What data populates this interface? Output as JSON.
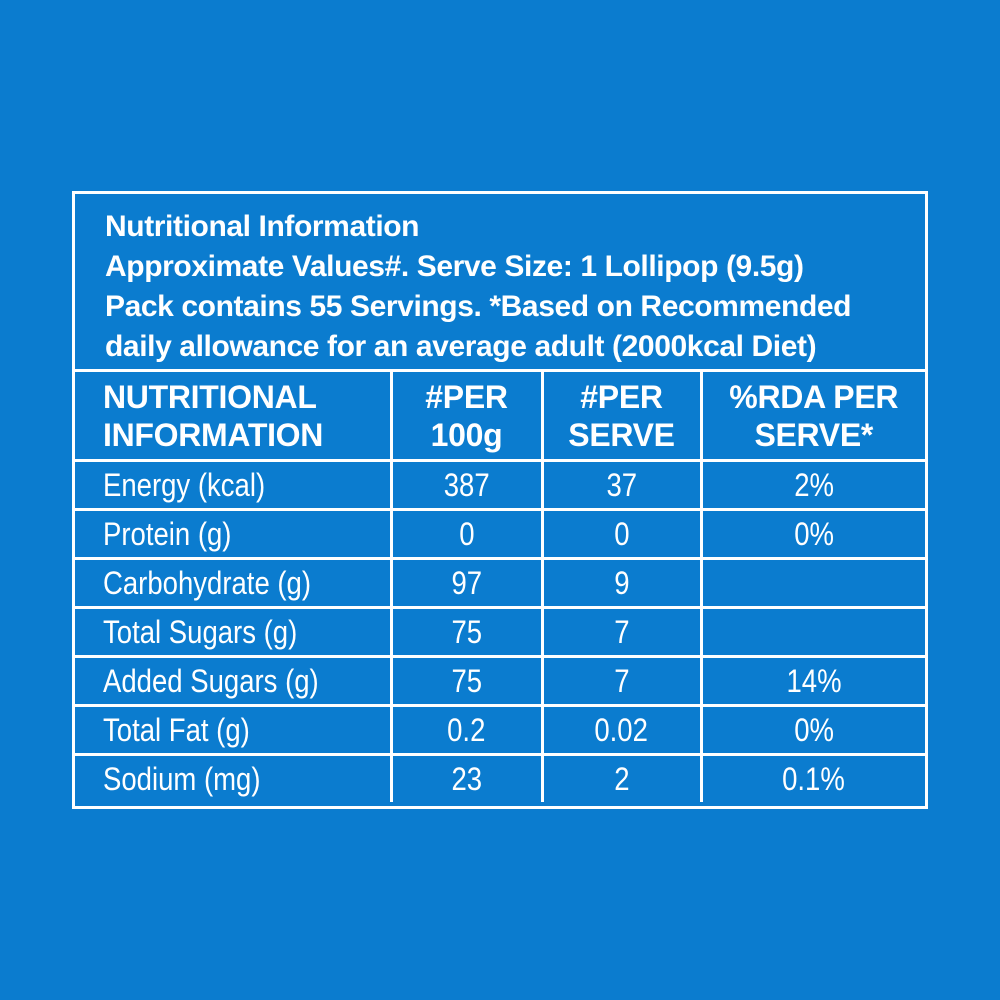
{
  "panel": {
    "header_lines": [
      "Nutritional Information",
      "Approximate Values#. Serve Size: 1 Lollipop (9.5g)",
      "Pack contains 55 Servings. *Based on Recommended",
      "daily allowance for an average adult (2000kcal Diet)"
    ]
  },
  "table": {
    "columns": [
      {
        "line1": "NUTRITIONAL",
        "line2": "INFORMATION"
      },
      {
        "line1": "#PER",
        "line2": "100g"
      },
      {
        "line1": "#PER",
        "line2": "SERVE"
      },
      {
        "line1": "%RDA PER",
        "line2": "SERVE*"
      }
    ],
    "rows": [
      {
        "nutrient": "Energy (kcal)",
        "per100g": "387",
        "perServe": "37",
        "rda": "2%"
      },
      {
        "nutrient": "Protein (g)",
        "per100g": "0",
        "perServe": "0",
        "rda": "0%"
      },
      {
        "nutrient": "Carbohydrate (g)",
        "per100g": "97",
        "perServe": "9",
        "rda": ""
      },
      {
        "nutrient": "Total Sugars (g)",
        "per100g": "75",
        "perServe": "7",
        "rda": ""
      },
      {
        "nutrient": "Added Sugars (g)",
        "per100g": "75",
        "perServe": "7",
        "rda": "14%"
      },
      {
        "nutrient": "Total Fat (g)",
        "per100g": "0.2",
        "perServe": "0.02",
        "rda": "0%"
      },
      {
        "nutrient": "Sodium (mg)",
        "per100g": "23",
        "perServe": "2",
        "rda": "0.1%"
      }
    ]
  },
  "colors": {
    "background": "#0b7ccf",
    "foreground": "#ffffff"
  }
}
